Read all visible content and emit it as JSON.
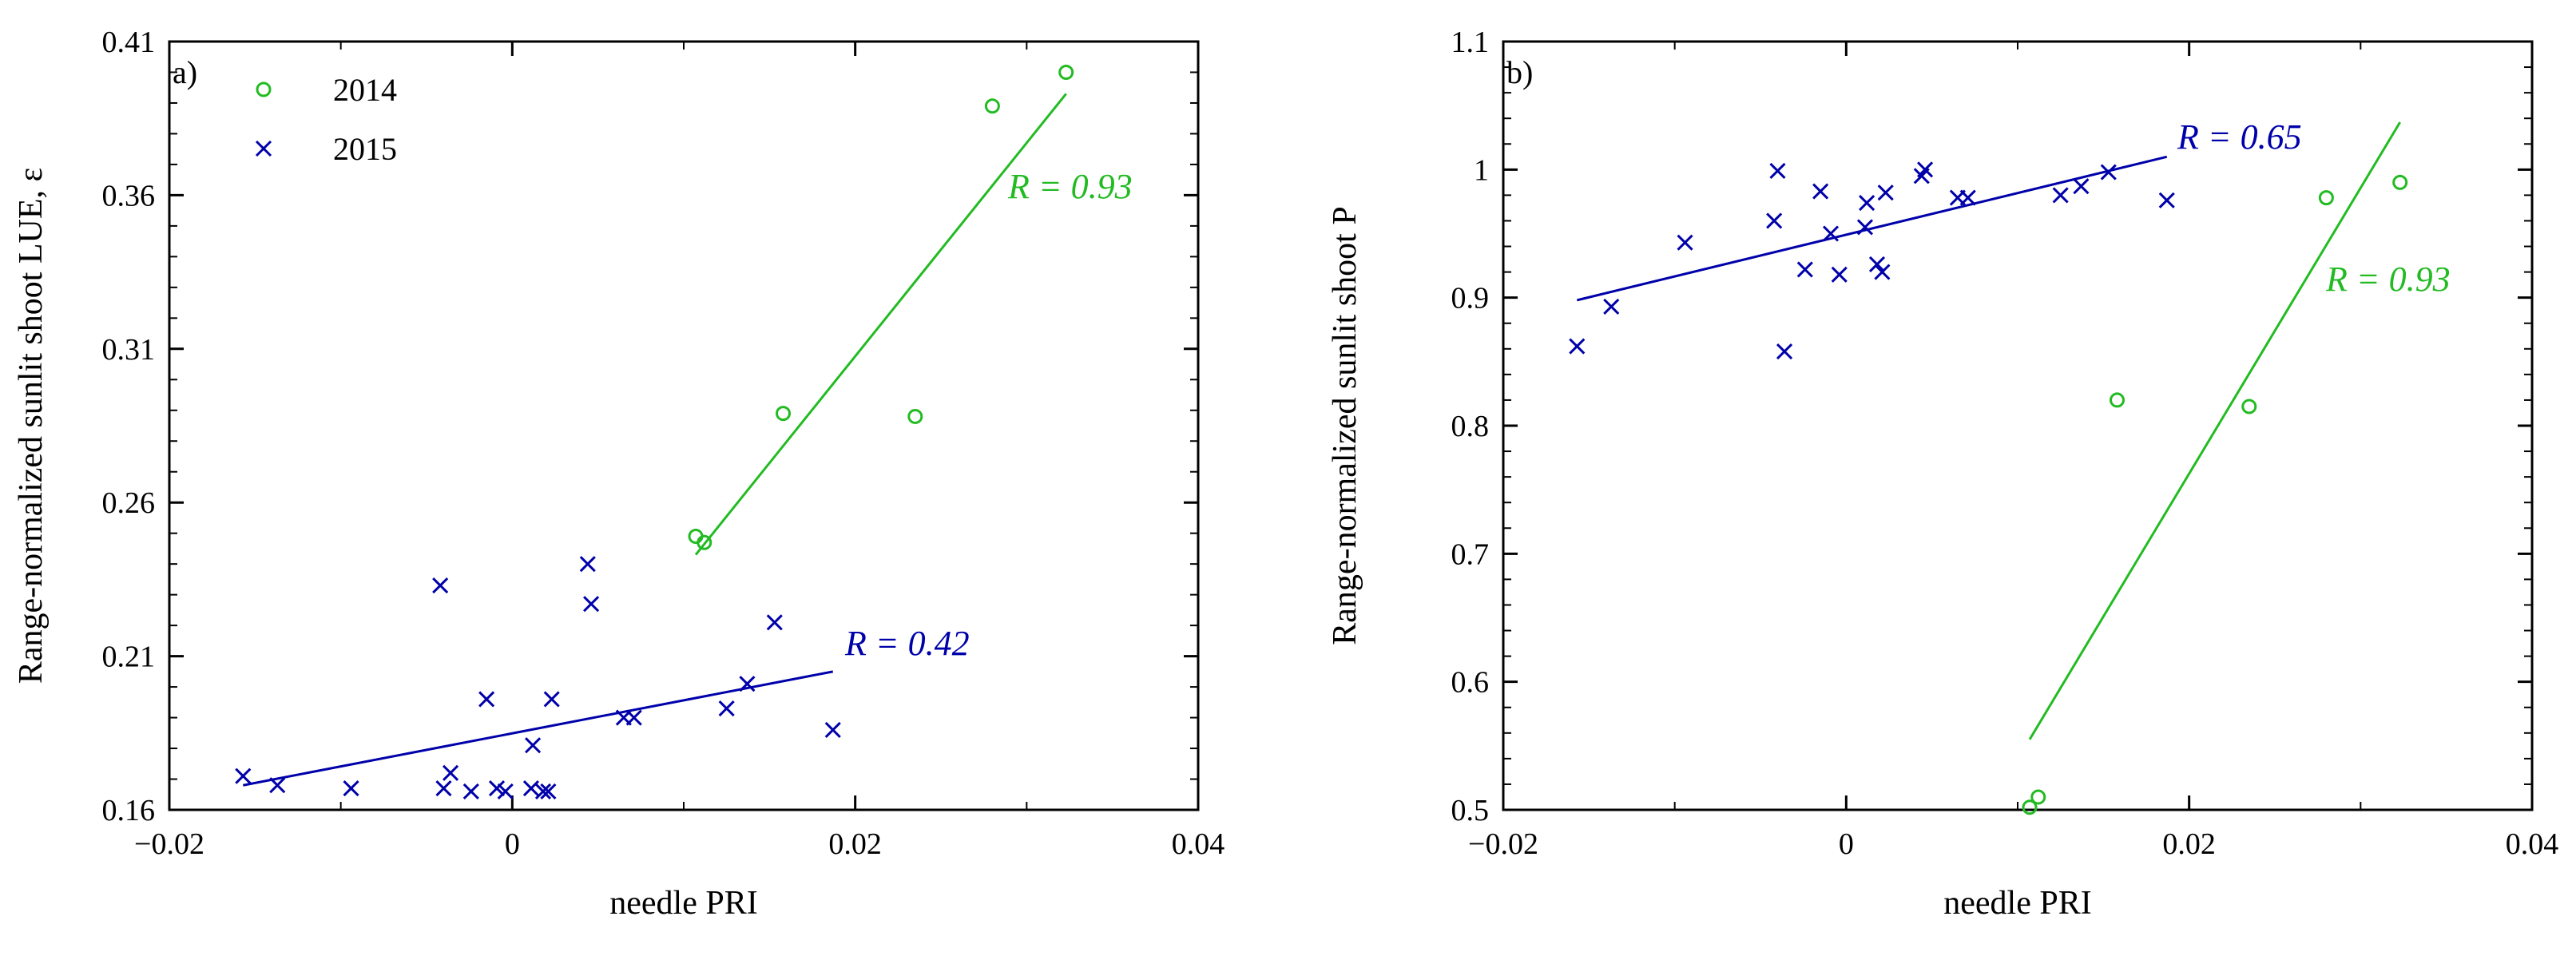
{
  "chart_data": [
    {
      "type": "scatter",
      "panel_label": "a)",
      "xlabel": "needle PRI",
      "ylabel": "Range-normalized sunlit shoot LUE, ε",
      "xlim": [
        -0.02,
        0.04
      ],
      "ylim": [
        0.16,
        0.41
      ],
      "xticks": [
        -0.02,
        0,
        0.02,
        0.04
      ],
      "xtick_labels": [
        "−0.02",
        "0",
        "0.02",
        "0.04"
      ],
      "yticks": [
        0.16,
        0.21,
        0.26,
        0.31,
        0.36,
        0.41
      ],
      "ytick_labels": [
        "0.16",
        "0.21",
        "0.26",
        "0.31",
        "0.36",
        "0.41"
      ],
      "legend_position": "top-left",
      "series": [
        {
          "name": "2014",
          "marker": "circle",
          "color": "#22bb22",
          "x": [
            0.0107,
            0.0112,
            0.0158,
            0.0235,
            0.028,
            0.0323
          ],
          "y": [
            0.249,
            0.247,
            0.289,
            0.288,
            0.389,
            0.4
          ]
        },
        {
          "name": "2015",
          "marker": "x",
          "color": "#0000aa",
          "x": [
            -0.0157,
            -0.0137,
            -0.0094,
            -0.0042,
            -0.004,
            -0.0036,
            -0.0024,
            -0.0015,
            -0.0009,
            -0.0004,
            0.0011,
            0.0012,
            0.0018,
            0.0021,
            0.0023,
            0.0044,
            0.0046,
            0.0065,
            0.0071,
            0.0125,
            0.0137,
            0.0153,
            0.0187
          ],
          "y": [
            0.171,
            0.168,
            0.167,
            0.233,
            0.167,
            0.172,
            0.166,
            0.196,
            0.167,
            0.166,
            0.167,
            0.181,
            0.166,
            0.166,
            0.196,
            0.24,
            0.227,
            0.19,
            0.19,
            0.193,
            0.201,
            0.221,
            0.186
          ]
        }
      ],
      "fits": [
        {
          "series": "2014",
          "color": "#22bb22",
          "x": [
            0.0107,
            0.0323
          ],
          "y": [
            0.243,
            0.393
          ],
          "label": "R = 0.93"
        },
        {
          "series": "2015",
          "color": "#0000aa",
          "x": [
            -0.0157,
            0.0187
          ],
          "y": [
            0.168,
            0.205
          ],
          "label": "R = 0.42"
        }
      ]
    },
    {
      "type": "scatter",
      "panel_label": "b)",
      "xlabel": "needle PRI",
      "ylabel": "Range-normalized sunlit shoot P",
      "xlim": [
        -0.02,
        0.04
      ],
      "ylim": [
        0.5,
        1.1
      ],
      "xticks": [
        -0.02,
        0,
        0.02,
        0.04
      ],
      "xtick_labels": [
        "−0.02",
        "0",
        "0.02",
        "0.04"
      ],
      "yticks": [
        0.5,
        0.6,
        0.7,
        0.8,
        0.9,
        1.0,
        1.1
      ],
      "ytick_labels": [
        "0.5",
        "0.6",
        "0.7",
        "0.8",
        "0.9",
        "1",
        "1.1"
      ],
      "series": [
        {
          "name": "2014",
          "marker": "circle",
          "color": "#22bb22",
          "x": [
            0.0107,
            0.0112,
            0.0158,
            0.0235,
            0.028,
            0.0323
          ],
          "y": [
            0.502,
            0.51,
            0.82,
            0.815,
            0.978,
            0.99
          ]
        },
        {
          "name": "2015",
          "marker": "x",
          "color": "#0000aa",
          "x": [
            -0.0157,
            -0.0137,
            -0.0094,
            -0.0042,
            -0.004,
            -0.0036,
            -0.0024,
            -0.0015,
            -0.0009,
            -0.0004,
            0.0011,
            0.0012,
            0.0018,
            0.0021,
            0.0023,
            0.0044,
            0.0046,
            0.0065,
            0.0071,
            0.0125,
            0.0137,
            0.0153,
            0.0187
          ],
          "y": [
            0.862,
            0.893,
            0.943,
            0.96,
            0.999,
            0.858,
            0.922,
            0.983,
            0.95,
            0.918,
            0.955,
            0.974,
            0.926,
            0.92,
            0.982,
            0.995,
            1.0,
            0.978,
            0.978,
            0.98,
            0.987,
            0.998,
            0.976
          ]
        }
      ],
      "fits": [
        {
          "series": "2014",
          "color": "#22bb22",
          "x": [
            0.0107,
            0.0323
          ],
          "y": [
            0.555,
            1.037
          ],
          "label": "R = 0.93"
        },
        {
          "series": "2015",
          "color": "#0000aa",
          "x": [
            -0.0157,
            0.0187
          ],
          "y": [
            0.898,
            1.01
          ],
          "label": "R = 0.65"
        }
      ]
    }
  ]
}
